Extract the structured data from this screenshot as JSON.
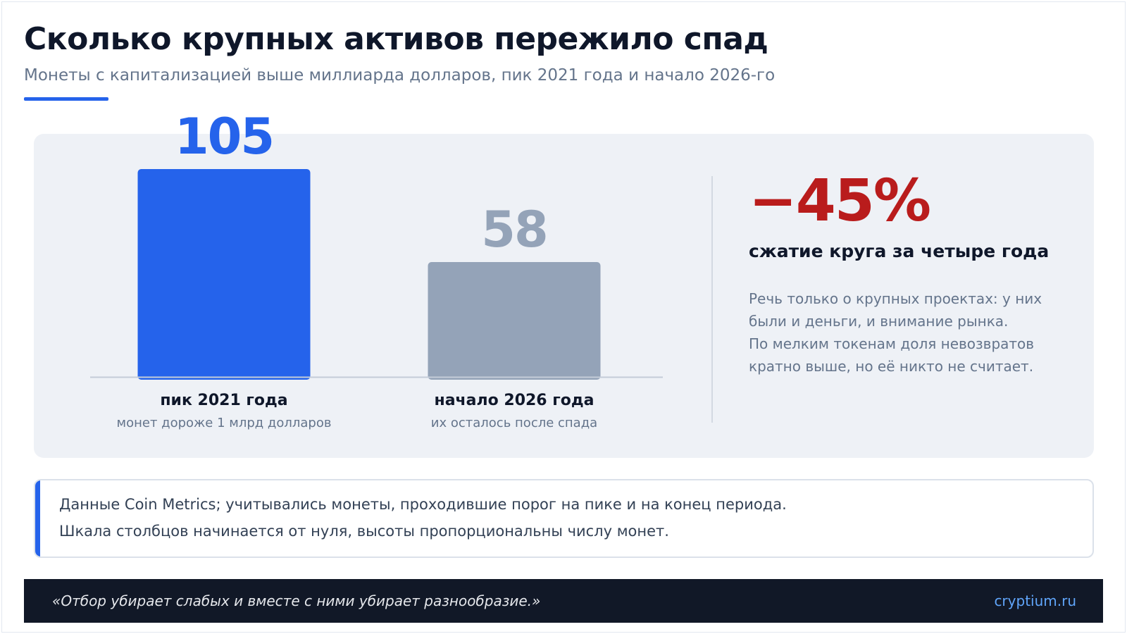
{
  "title": "Сколько крупных активов пережило спад",
  "subtitle": "Монеты с капитализацией выше миллиарда долларов, пик 2021 года и начало 2026-го",
  "chart_data": {
    "type": "bar",
    "categories": [
      "пик 2021 года",
      "начало 2026 года"
    ],
    "category_sublabels": [
      "монет дороже 1 млрд долларов",
      "их осталось после спада"
    ],
    "values": [
      105,
      58
    ],
    "data_labels": [
      "105",
      "58"
    ],
    "colors": [
      "#2563eb",
      "#94a3b8"
    ],
    "label_colors": [
      "#2563eb",
      "#94a3b8"
    ],
    "ylim": [
      0,
      105
    ],
    "grid": false,
    "legend": "none"
  },
  "callout": {
    "value": "−45%",
    "label": "сжатие круга за четыре года",
    "note_lines": [
      "Речь только о крупных проектах: у них",
      "были и деньги, и внимание рынка.",
      "По мелким токенам доля невозвратов",
      "кратно выше, но её никто не считает."
    ]
  },
  "source": {
    "lines": [
      "Данные Coin Metrics; учитывались монеты, проходившие порог на пике и на конец периода.",
      "Шкала столбцов начинается от нуля, высоты пропорциональны числу монет."
    ]
  },
  "footer": {
    "quote": "«Отбор убирает слабых и вместе с ними убирает разнообразие.»",
    "site": "cryptium.ru"
  },
  "colors": {
    "accent": "#2563eb",
    "negative": "#b91c1c",
    "muted": "#94a3b8"
  }
}
